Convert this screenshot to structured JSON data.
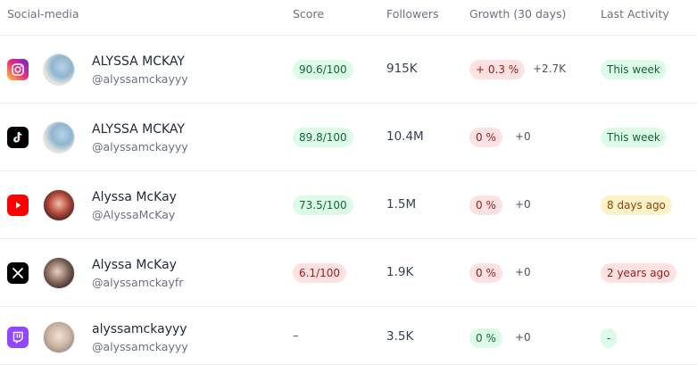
{
  "columns": {
    "social": "Social-media",
    "score": "Score",
    "followers": "Followers",
    "growth": "Growth (30 days)",
    "activity": "Last Activity"
  },
  "rows": [
    {
      "platform": "instagram",
      "name": "ALYSSA MCKAY",
      "handle": "@alyssamckayyy",
      "score": "90.6/100",
      "followers": "915K",
      "growth": "+ 0.3 %",
      "delta": "+2.7K",
      "activity": "This week"
    },
    {
      "platform": "tiktok",
      "name": "ALYSSA MCKAY",
      "handle": "@alyssamckayyy",
      "score": "89.8/100",
      "followers": "10.4M",
      "growth": "0 %",
      "delta": "+0",
      "activity": "This week"
    },
    {
      "platform": "youtube",
      "name": "Alyssa McKay",
      "handle": "@AlyssaMcKay",
      "score": "73.5/100",
      "followers": "1.5M",
      "growth": "0 %",
      "delta": "+0",
      "activity": "8 days ago"
    },
    {
      "platform": "x",
      "name": "Alyssa McKay",
      "handle": "@alyssamckayfr",
      "score": "6.1/100",
      "followers": "1.9K",
      "growth": "0 %",
      "delta": "+0",
      "activity": "2 years ago"
    },
    {
      "platform": "twitch",
      "name": "alyssamckayyy",
      "handle": "@alyssamckayyy",
      "score": "–",
      "followers": "3.5K",
      "growth": "0 %",
      "delta": "+0",
      "activity": "-"
    }
  ],
  "colors": {
    "green_bg": "#dcfce7",
    "green_text": "#166534",
    "red_bg": "#fee2e2",
    "red_text": "#991b1b",
    "yellow_bg": "#fef3c7",
    "yellow_text": "#92400e"
  }
}
